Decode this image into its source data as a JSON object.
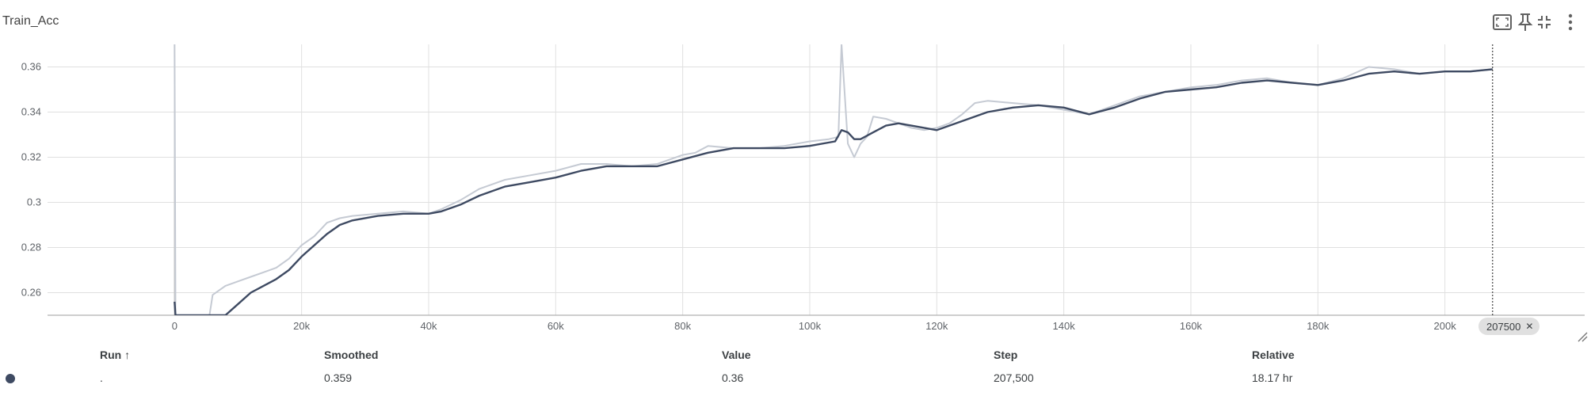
{
  "card": {
    "title": "Train_Acc"
  },
  "toolbar": {
    "icons": [
      "fit-domain-icon",
      "pin-icon",
      "collapse-icon",
      "more-vert-icon"
    ]
  },
  "chart_data": {
    "type": "line",
    "title": "Train_Acc",
    "xlabel": "",
    "ylabel": "",
    "xlim": [
      -20000,
      222000
    ],
    "ylim": [
      0.25,
      0.37
    ],
    "x_ticks": [
      {
        "v": 0,
        "label": "0"
      },
      {
        "v": 20000,
        "label": "20k"
      },
      {
        "v": 40000,
        "label": "40k"
      },
      {
        "v": 60000,
        "label": "60k"
      },
      {
        "v": 80000,
        "label": "80k"
      },
      {
        "v": 100000,
        "label": "100k"
      },
      {
        "v": 120000,
        "label": "120k"
      },
      {
        "v": 140000,
        "label": "140k"
      },
      {
        "v": 160000,
        "label": "160k"
      },
      {
        "v": 180000,
        "label": "180k"
      },
      {
        "v": 200000,
        "label": "200k"
      }
    ],
    "y_ticks": [
      {
        "v": 0.26,
        "label": "0.26"
      },
      {
        "v": 0.28,
        "label": "0.28"
      },
      {
        "v": 0.3,
        "label": "0.3"
      },
      {
        "v": 0.32,
        "label": "0.32"
      },
      {
        "v": 0.34,
        "label": "0.34"
      },
      {
        "v": 0.36,
        "label": "0.36"
      }
    ],
    "grid": true,
    "colors": {
      "raw": "#c5cad3",
      "smoothed": "#3e4a62",
      "grid": "#e0e0e0",
      "axis": "#9e9e9e"
    },
    "series": [
      {
        "name": "Value",
        "x": [
          0,
          150,
          5500,
          6000,
          8000,
          10000,
          12000,
          14000,
          16000,
          18000,
          20000,
          22000,
          24000,
          26000,
          28000,
          32000,
          36000,
          40000,
          42000,
          45000,
          48000,
          52000,
          56000,
          60000,
          64000,
          68000,
          72000,
          76000,
          80000,
          82000,
          84000,
          88000,
          92000,
          96000,
          100000,
          103000,
          104500,
          105000,
          106000,
          107000,
          108000,
          109000,
          110000,
          112000,
          114000,
          116000,
          118000,
          120000,
          122000,
          124000,
          126000,
          128000,
          132000,
          136000,
          140000,
          144000,
          148000,
          152000,
          156000,
          160000,
          164000,
          168000,
          172000,
          176000,
          180000,
          184000,
          188000,
          192000,
          196000,
          200000,
          204000,
          207500
        ],
        "y": [
          0.37,
          0.25,
          0.25,
          0.259,
          0.263,
          0.265,
          0.267,
          0.269,
          0.271,
          0.275,
          0.281,
          0.285,
          0.291,
          0.293,
          0.294,
          0.295,
          0.296,
          0.295,
          0.297,
          0.301,
          0.306,
          0.31,
          0.312,
          0.314,
          0.317,
          0.317,
          0.316,
          0.317,
          0.321,
          0.322,
          0.325,
          0.324,
          0.324,
          0.325,
          0.327,
          0.328,
          0.329,
          0.371,
          0.326,
          0.32,
          0.326,
          0.329,
          0.338,
          0.337,
          0.335,
          0.333,
          0.332,
          0.333,
          0.335,
          0.339,
          0.344,
          0.345,
          0.344,
          0.343,
          0.341,
          0.339,
          0.343,
          0.347,
          0.349,
          0.351,
          0.352,
          0.354,
          0.355,
          0.353,
          0.352,
          0.355,
          0.36,
          0.359,
          0.357,
          0.358,
          0.358,
          0.359
        ]
      },
      {
        "name": "Smoothed",
        "x": [
          0,
          150,
          8000,
          10000,
          12000,
          14000,
          16000,
          18000,
          20000,
          22000,
          24000,
          26000,
          28000,
          32000,
          36000,
          40000,
          42000,
          45000,
          48000,
          52000,
          56000,
          60000,
          64000,
          68000,
          72000,
          76000,
          80000,
          84000,
          88000,
          92000,
          96000,
          100000,
          104000,
          105000,
          106000,
          107000,
          108000,
          110000,
          112000,
          114000,
          116000,
          118000,
          120000,
          124000,
          128000,
          132000,
          136000,
          140000,
          144000,
          148000,
          152000,
          156000,
          160000,
          164000,
          168000,
          172000,
          176000,
          180000,
          184000,
          188000,
          192000,
          196000,
          200000,
          204000,
          207500
        ],
        "y": [
          0.256,
          0.25,
          0.25,
          0.255,
          0.26,
          0.263,
          0.266,
          0.27,
          0.276,
          0.281,
          0.286,
          0.29,
          0.292,
          0.294,
          0.295,
          0.295,
          0.296,
          0.299,
          0.303,
          0.307,
          0.309,
          0.311,
          0.314,
          0.316,
          0.316,
          0.316,
          0.319,
          0.322,
          0.324,
          0.324,
          0.324,
          0.325,
          0.327,
          0.332,
          0.331,
          0.328,
          0.328,
          0.331,
          0.334,
          0.335,
          0.334,
          0.333,
          0.332,
          0.336,
          0.34,
          0.342,
          0.343,
          0.342,
          0.339,
          0.342,
          0.346,
          0.349,
          0.35,
          0.351,
          0.353,
          0.354,
          0.353,
          0.352,
          0.354,
          0.357,
          0.358,
          0.357,
          0.358,
          0.358,
          0.359
        ]
      }
    ],
    "cursor": {
      "step": 207500,
      "label": "207500"
    }
  },
  "table": {
    "headers": {
      "run": "Run ↑",
      "smoothed": "Smoothed",
      "value": "Value",
      "step": "Step",
      "relative": "Relative"
    },
    "row": {
      "run": ".",
      "smoothed": "0.359",
      "value": "0.36",
      "step": "207,500",
      "relative": "18.17 hr",
      "color": "#3e4a62"
    }
  }
}
